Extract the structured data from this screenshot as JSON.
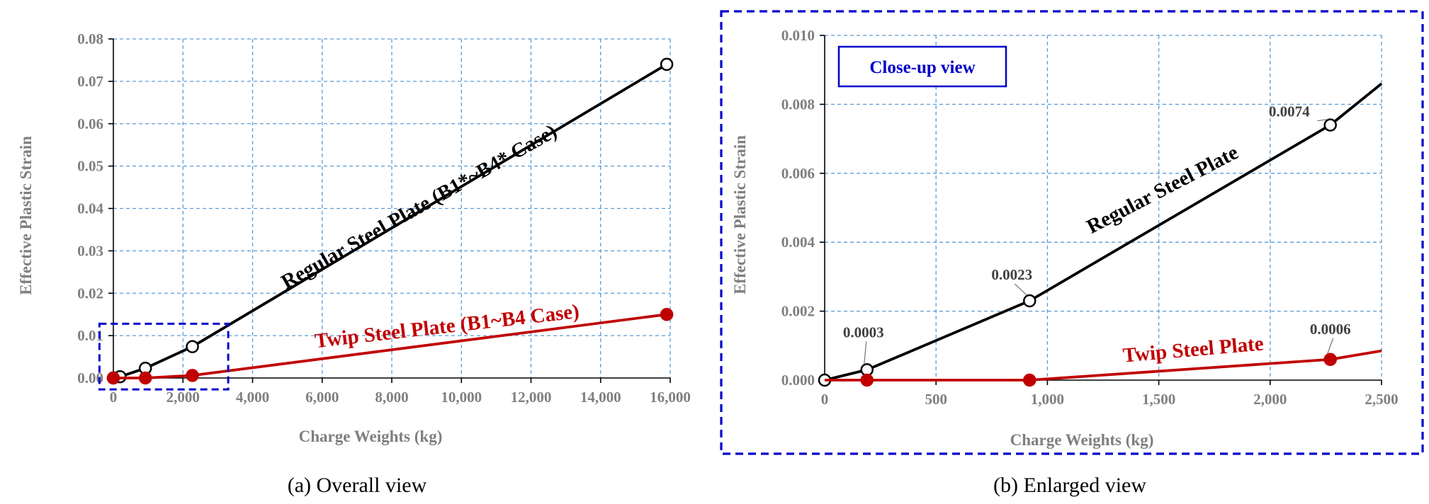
{
  "colors": {
    "regular": "#000000",
    "twip": "#c00000",
    "grid": "#5b9bd5",
    "highlight": "#0000cc"
  },
  "chart_data": [
    {
      "type": "line",
      "caption": "(a) Overall view",
      "xlabel": "Charge Weights (kg)",
      "ylabel": "Effective Plastic Strain",
      "xlim": [
        0,
        16000
      ],
      "ylim": [
        0,
        0.08
      ],
      "xticks": [
        "0",
        "2,000",
        "4,000",
        "6,000",
        "8,000",
        "10,000",
        "12,000",
        "14,000",
        "16,000"
      ],
      "yticks": [
        "0.00",
        "0.01",
        "0.02",
        "0.03",
        "0.04",
        "0.05",
        "0.06",
        "0.07",
        "0.08"
      ],
      "grid": true,
      "series": [
        {
          "name": "Regular Steel Plate (B1*~B4* Case)",
          "key": "regular",
          "x": [
            0,
            190,
            920,
            2270,
            15900
          ],
          "y": [
            0,
            0.0003,
            0.0023,
            0.0074,
            0.074
          ]
        },
        {
          "name": "Twip Steel Plate (B1~B4 Case)",
          "key": "twip",
          "x": [
            0,
            920,
            2270,
            15900
          ],
          "y": [
            0,
            0.0,
            0.0006,
            0.015
          ]
        }
      ],
      "highlight_box": {
        "x": [
          -400,
          3300
        ],
        "y": [
          -0.0027,
          0.0128
        ]
      }
    },
    {
      "type": "line",
      "caption": "(b) Enlarged view",
      "xlabel": "Charge Weights (kg)",
      "ylabel": "Effective Plastic Strain",
      "xlim": [
        0,
        2500
      ],
      "ylim": [
        0,
        0.01
      ],
      "xticks": [
        "0",
        "500",
        "1,000",
        "1,500",
        "2,000",
        "2,500"
      ],
      "yticks": [
        "0.000",
        "0.002",
        "0.004",
        "0.006",
        "0.008",
        "0.010"
      ],
      "grid": true,
      "inset_label": "Close-up view",
      "series": [
        {
          "name": "Regular Steel Plate",
          "key": "regular",
          "x": [
            0,
            190,
            920,
            2270,
            2500
          ],
          "y": [
            0,
            0.0003,
            0.0023,
            0.0074,
            0.0086
          ],
          "markers": [
            0,
            1,
            2,
            3
          ]
        },
        {
          "name": "Twip Steel Plate",
          "key": "twip",
          "x": [
            0,
            190,
            920,
            2270,
            2500
          ],
          "y": [
            0,
            0,
            0,
            0.0006,
            0.00085
          ],
          "markers": [
            1,
            2,
            3
          ]
        }
      ],
      "point_labels": [
        {
          "series": "regular",
          "index": 1,
          "text": "0.0003"
        },
        {
          "series": "regular",
          "index": 2,
          "text": "0.0023"
        },
        {
          "series": "regular",
          "index": 3,
          "text": "0.0074"
        },
        {
          "series": "twip",
          "index": 3,
          "text": "0.0006"
        }
      ]
    }
  ]
}
